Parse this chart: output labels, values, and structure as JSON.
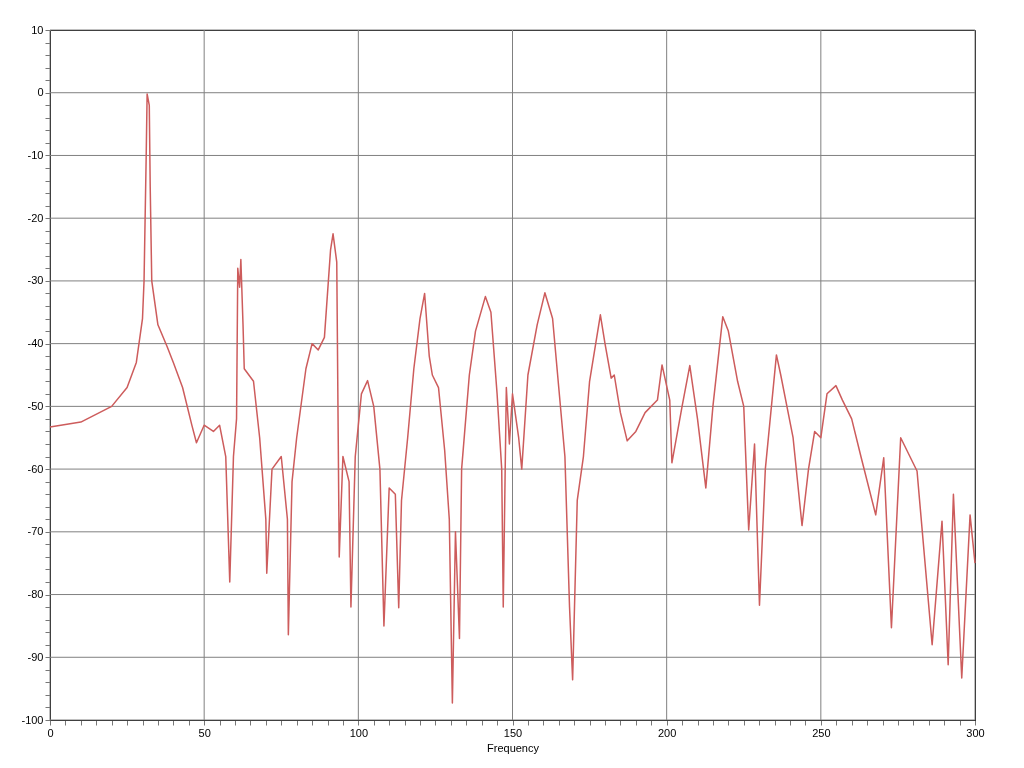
{
  "chart_data": {
    "type": "line",
    "xlabel": "Frequency",
    "xlim": [
      0,
      300
    ],
    "ylim": [
      -100,
      10
    ],
    "xticks": [
      0,
      {
        "value": 5,
        "label": null
      },
      {
        "value": 10,
        "label": null
      },
      {
        "value": 15,
        "label": null
      },
      {
        "value": 20,
        "label": null
      },
      {
        "value": 25,
        "label": null
      },
      {
        "value": 30,
        "label": null
      },
      {
        "value": 35,
        "label": null
      },
      {
        "value": 40,
        "label": null
      },
      {
        "value": 45,
        "label": null
      },
      50,
      {
        "value": 55,
        "label": null
      },
      {
        "value": 60,
        "label": null
      },
      {
        "value": 65,
        "label": null
      },
      {
        "value": 70,
        "label": null
      },
      {
        "value": 75,
        "label": null
      },
      {
        "value": 80,
        "label": null
      },
      {
        "value": 85,
        "label": null
      },
      {
        "value": 90,
        "label": null
      },
      {
        "value": 95,
        "label": null
      },
      100,
      {
        "value": 105,
        "label": null
      },
      {
        "value": 110,
        "label": null
      },
      {
        "value": 115,
        "label": null
      },
      {
        "value": 120,
        "label": null
      },
      {
        "value": 125,
        "label": null
      },
      {
        "value": 130,
        "label": null
      },
      {
        "value": 135,
        "label": null
      },
      {
        "value": 140,
        "label": null
      },
      {
        "value": 145,
        "label": null
      },
      150,
      {
        "value": 155,
        "label": null
      },
      {
        "value": 160,
        "label": null
      },
      {
        "value": 165,
        "label": null
      },
      {
        "value": 170,
        "label": null
      },
      {
        "value": 175,
        "label": null
      },
      {
        "value": 180,
        "label": null
      },
      {
        "value": 185,
        "label": null
      },
      {
        "value": 190,
        "label": null
      },
      {
        "value": 195,
        "label": null
      },
      200,
      {
        "value": 205,
        "label": null
      },
      {
        "value": 210,
        "label": null
      },
      {
        "value": 215,
        "label": null
      },
      {
        "value": 220,
        "label": null
      },
      {
        "value": 225,
        "label": null
      },
      {
        "value": 230,
        "label": null
      },
      {
        "value": 235,
        "label": null
      },
      {
        "value": 240,
        "label": null
      },
      {
        "value": 245,
        "label": null
      },
      250,
      {
        "value": 255,
        "label": null
      },
      {
        "value": 260,
        "label": null
      },
      {
        "value": 265,
        "label": null
      },
      {
        "value": 270,
        "label": null
      },
      {
        "value": 275,
        "label": null
      },
      {
        "value": 280,
        "label": null
      },
      {
        "value": 285,
        "label": null
      },
      {
        "value": 290,
        "label": null
      },
      {
        "value": 295,
        "label": null
      },
      300
    ],
    "yticks": [
      -100,
      {
        "value": -98,
        "label": null
      },
      {
        "value": -96,
        "label": null
      },
      {
        "value": -94,
        "label": null
      },
      {
        "value": -92,
        "label": null
      },
      -90,
      {
        "value": -88,
        "label": null
      },
      {
        "value": -86,
        "label": null
      },
      {
        "value": -84,
        "label": null
      },
      {
        "value": -82,
        "label": null
      },
      -80,
      {
        "value": -78,
        "label": null
      },
      {
        "value": -76,
        "label": null
      },
      {
        "value": -74,
        "label": null
      },
      {
        "value": -72,
        "label": null
      },
      -70,
      {
        "value": -68,
        "label": null
      },
      {
        "value": -66,
        "label": null
      },
      {
        "value": -64,
        "label": null
      },
      {
        "value": -62,
        "label": null
      },
      -60,
      {
        "value": -58,
        "label": null
      },
      {
        "value": -56,
        "label": null
      },
      {
        "value": -54,
        "label": null
      },
      {
        "value": -52,
        "label": null
      },
      -50,
      {
        "value": -48,
        "label": null
      },
      {
        "value": -46,
        "label": null
      },
      {
        "value": -44,
        "label": null
      },
      {
        "value": -42,
        "label": null
      },
      -40,
      {
        "value": -38,
        "label": null
      },
      {
        "value": -36,
        "label": null
      },
      {
        "value": -34,
        "label": null
      },
      {
        "value": -32,
        "label": null
      },
      -30,
      {
        "value": -28,
        "label": null
      },
      {
        "value": -26,
        "label": null
      },
      {
        "value": -24,
        "label": null
      },
      {
        "value": -22,
        "label": null
      },
      -20,
      {
        "value": -18,
        "label": null
      },
      {
        "value": -16,
        "label": null
      },
      {
        "value": -14,
        "label": null
      },
      {
        "value": -12,
        "label": null
      },
      -10,
      {
        "value": -8,
        "label": null
      },
      {
        "value": -6,
        "label": null
      },
      {
        "value": -4,
        "label": null
      },
      {
        "value": -2,
        "label": null
      },
      0,
      {
        "value": 2,
        "label": null
      },
      {
        "value": 4,
        "label": null
      },
      {
        "value": 6,
        "label": null
      },
      {
        "value": 8,
        "label": null
      },
      10
    ],
    "grid": true,
    "marker": "none",
    "line_style": "solid",
    "series": [
      {
        "color": "#cd5c5c",
        "x": [
          0,
          10,
          20,
          25,
          28,
          30,
          30.5,
          31.2,
          31.5,
          32.2,
          32.5,
          33,
          35,
          38,
          40,
          43,
          46,
          47.5,
          50,
          53,
          55,
          57,
          58.3,
          59.5,
          60.5,
          60.9,
          61.5,
          61.9,
          62.6,
          63,
          66,
          68,
          70,
          70.3,
          72,
          75,
          77,
          77.3,
          78.5,
          80,
          83,
          85,
          87,
          89,
          91,
          91.8,
          93,
          93.8,
          95,
          97,
          97.6,
          99,
          101,
          103,
          105,
          107,
          108.3,
          110,
          112,
          113.1,
          114,
          116,
          118,
          120,
          121.5,
          123,
          124,
          126,
          128,
          129.5,
          130.5,
          131.5,
          132.8,
          133.5,
          136,
          138,
          141.2,
          143,
          145,
          146.5,
          147,
          148,
          149,
          150,
          152,
          153,
          155,
          158,
          160.5,
          163,
          165,
          167,
          168.5,
          169.5,
          171,
          173,
          175,
          178.5,
          180,
          182,
          183,
          185,
          187.2,
          190,
          193,
          197,
          198.5,
          201,
          201.7,
          205,
          207.5,
          210,
          212.7,
          215,
          218.2,
          220,
          223,
          225,
          226.6,
          228.5,
          230.1,
          232,
          235.6,
          237,
          239,
          241,
          243.9,
          246,
          248,
          250,
          252,
          254.9,
          257,
          260,
          263,
          267.8,
          270.4,
          272.9,
          275.9,
          281.2,
          286.1,
          289.3,
          291.3,
          293,
          295.7,
          298.4,
          300
        ],
        "values": [
          -53.3,
          -52.5,
          -50,
          -47,
          -43,
          -36,
          -30,
          -10,
          -0.2,
          -2,
          -15,
          -30,
          -37,
          -40.5,
          -43,
          -47,
          -53,
          -55.8,
          -53,
          -54,
          -53,
          -58,
          -78,
          -58,
          -52,
          -28,
          -31,
          -26.6,
          -37,
          -44,
          -46,
          -55,
          -68,
          -76.6,
          -60,
          -58,
          -68,
          -86.4,
          -62,
          -55,
          -44,
          -40,
          -41,
          -39,
          -25,
          -22.5,
          -27,
          -74,
          -58,
          -62,
          -82,
          -58,
          -48,
          -45.9,
          -50,
          -60,
          -85,
          -63,
          -64,
          -82.1,
          -65,
          -55,
          -44,
          -36,
          -32,
          -42,
          -45,
          -47,
          -57,
          -68,
          -97.3,
          -70,
          -87,
          -60,
          -45,
          -38,
          -32.5,
          -35,
          -48,
          -60,
          -82,
          -47,
          -56,
          -48,
          -55,
          -60,
          -45,
          -37,
          -31.9,
          -36,
          -47,
          -58,
          -82,
          -93.6,
          -65,
          -58,
          -46,
          -35.4,
          -40,
          -45.5,
          -45,
          -51,
          -55.5,
          -54,
          -51,
          -49,
          -43.4,
          -49,
          -59,
          -50,
          -43.5,
          -52,
          -63,
          -50,
          -35.7,
          -38,
          -46,
          -50,
          -69.7,
          -56,
          -81.7,
          -60,
          -41.8,
          -45,
          -50,
          -55,
          -69,
          -60,
          -54,
          -55,
          -48,
          -46.7,
          -49,
          -52,
          -58,
          -67.3,
          -58.2,
          -85.3,
          -55,
          -60.3,
          -88,
          -68.3,
          -91.2,
          -64,
          -93.3,
          -67.3,
          -75
        ]
      }
    ]
  }
}
